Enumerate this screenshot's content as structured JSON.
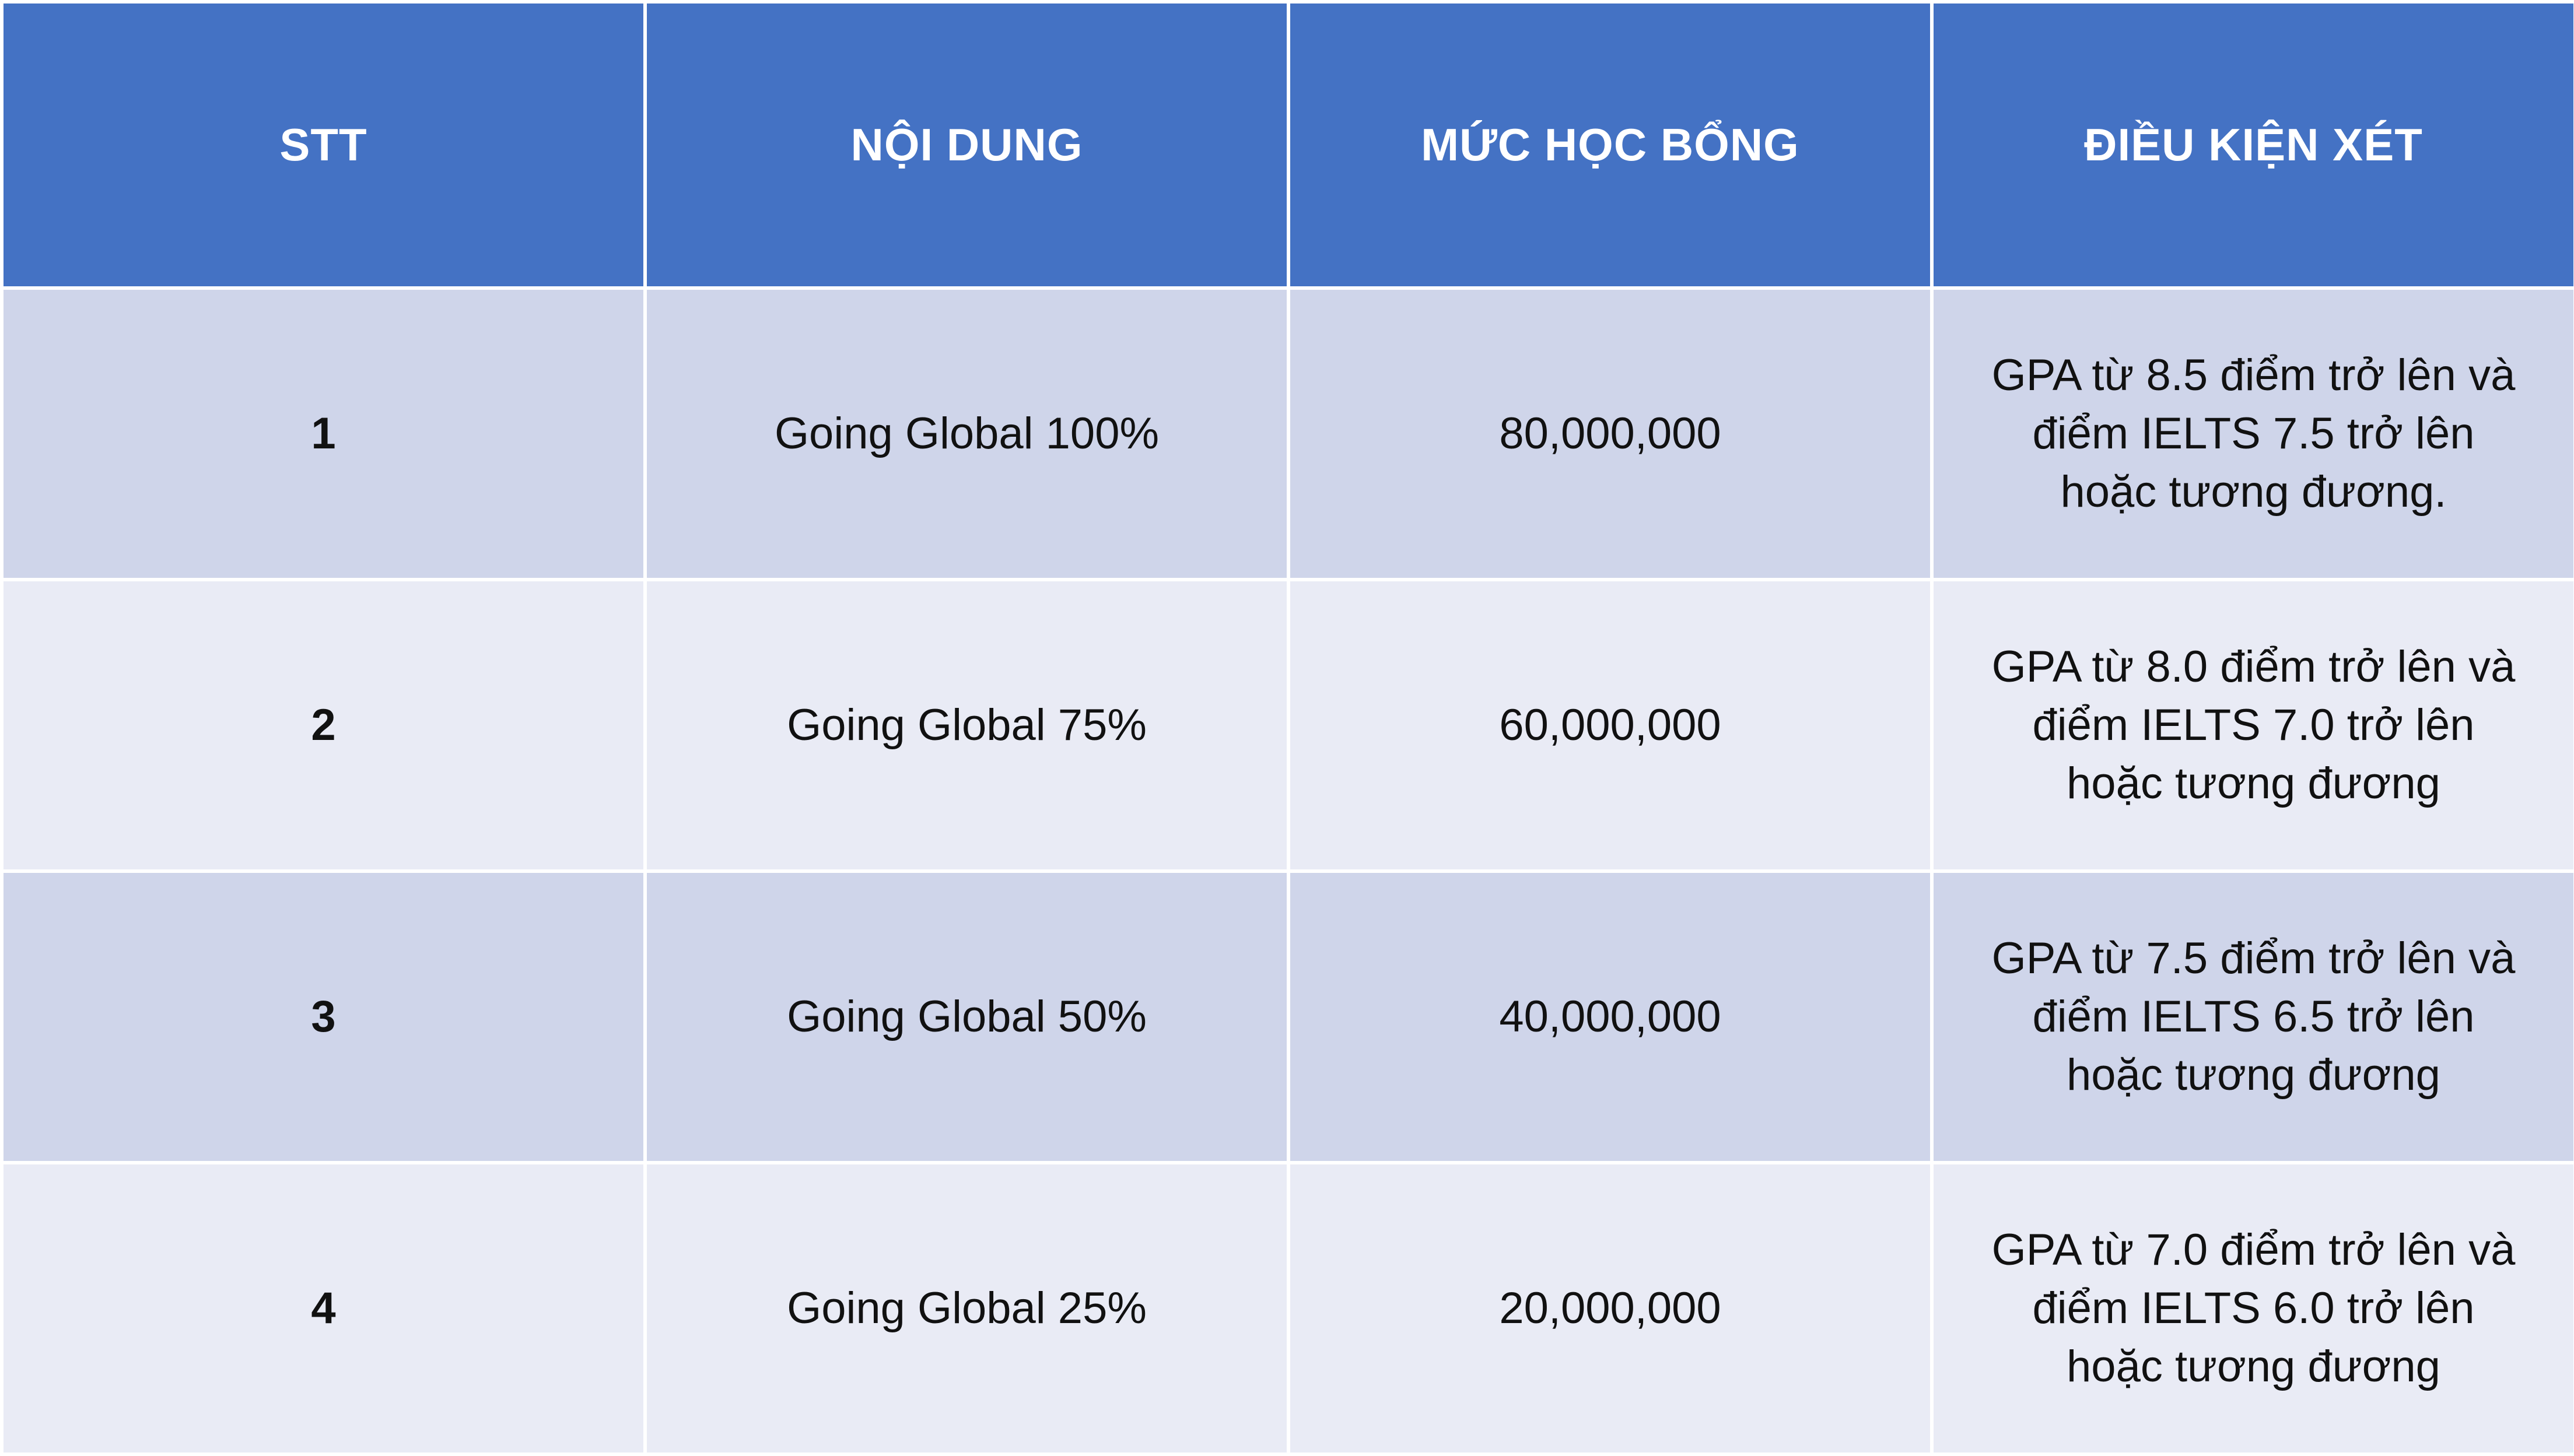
{
  "table": {
    "headers": [
      "STT",
      "NỘI DUNG",
      "MỨC HỌC BỔNG",
      "ĐIỀU KIỆN XÉT"
    ],
    "rows": [
      {
        "stt": "1",
        "noi_dung": "Going Global 100%",
        "muc_hoc_bong": "80,000,000",
        "dieu_kien": "GPA từ 8.5 điểm trở lên và điểm IELTS 7.5 trở lên hoặc tương đương."
      },
      {
        "stt": "2",
        "noi_dung": "Going Global 75%",
        "muc_hoc_bong": "60,000,000",
        "dieu_kien": "GPA từ 8.0 điểm trở lên và điểm IELTS 7.0 trở lên hoặc tương đương"
      },
      {
        "stt": "3",
        "noi_dung": "Going Global 50%",
        "muc_hoc_bong": "40,000,000",
        "dieu_kien": "GPA từ 7.5 điểm trở lên và điểm IELTS 6.5 trở lên hoặc tương đương"
      },
      {
        "stt": "4",
        "noi_dung": "Going Global 25%",
        "muc_hoc_bong": "20,000,000",
        "dieu_kien": "GPA từ 7.0 điểm trở lên và điểm IELTS 6.0 trở lên hoặc tương đương"
      }
    ]
  },
  "colors": {
    "header_bg": "#4472c4",
    "row_odd_bg": "#cfd5ea",
    "row_even_bg": "#e9ebf5"
  }
}
